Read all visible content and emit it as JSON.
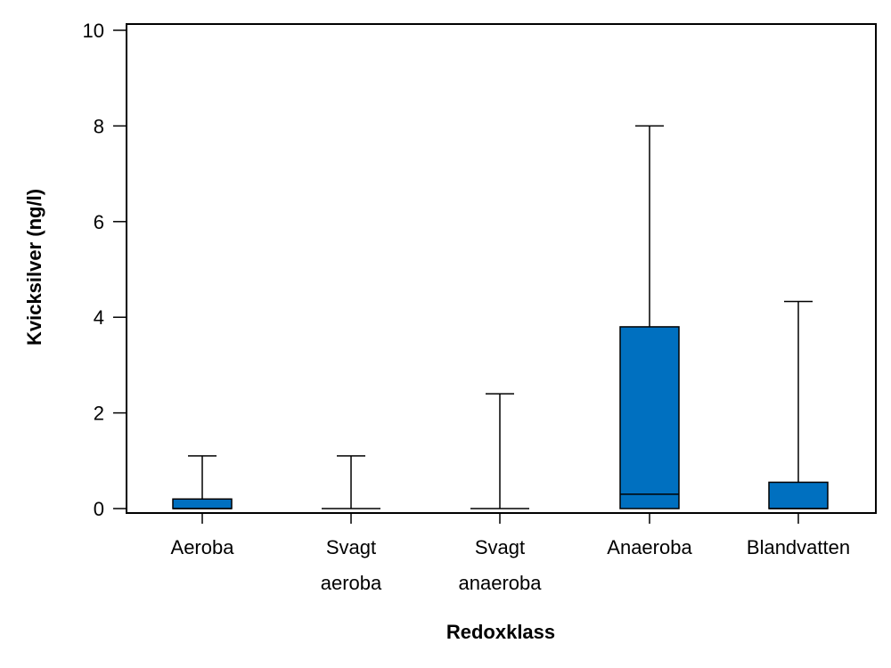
{
  "chart_data": {
    "type": "box",
    "title": "",
    "xlabel": "Redoxklass",
    "ylabel": "Kvicksilver (ng/l)",
    "ylim": [
      0,
      10
    ],
    "yticks": [
      "0",
      "2",
      "4",
      "6",
      "8",
      "10"
    ],
    "grid": false,
    "box_color": "#0070C0",
    "categories": [
      {
        "label_lines": [
          "Aeroba"
        ],
        "min": 0,
        "q1": 0,
        "median": 0,
        "q3": 0.2,
        "max": 1.1
      },
      {
        "label_lines": [
          "Svagt",
          "aeroba"
        ],
        "min": 0,
        "q1": 0,
        "median": 0,
        "q3": 0,
        "max": 1.1
      },
      {
        "label_lines": [
          "Svagt",
          "anaeroba"
        ],
        "min": 0,
        "q1": 0,
        "median": 0,
        "q3": 0,
        "max": 2.4
      },
      {
        "label_lines": [
          "Anaeroba"
        ],
        "min": 0,
        "q1": 0,
        "median": 0.3,
        "q3": 3.8,
        "max": 8.0
      },
      {
        "label_lines": [
          "Blandvatten"
        ],
        "min": 0,
        "q1": 0,
        "median": 0,
        "q3": 0.55,
        "max": 4.33
      }
    ]
  }
}
